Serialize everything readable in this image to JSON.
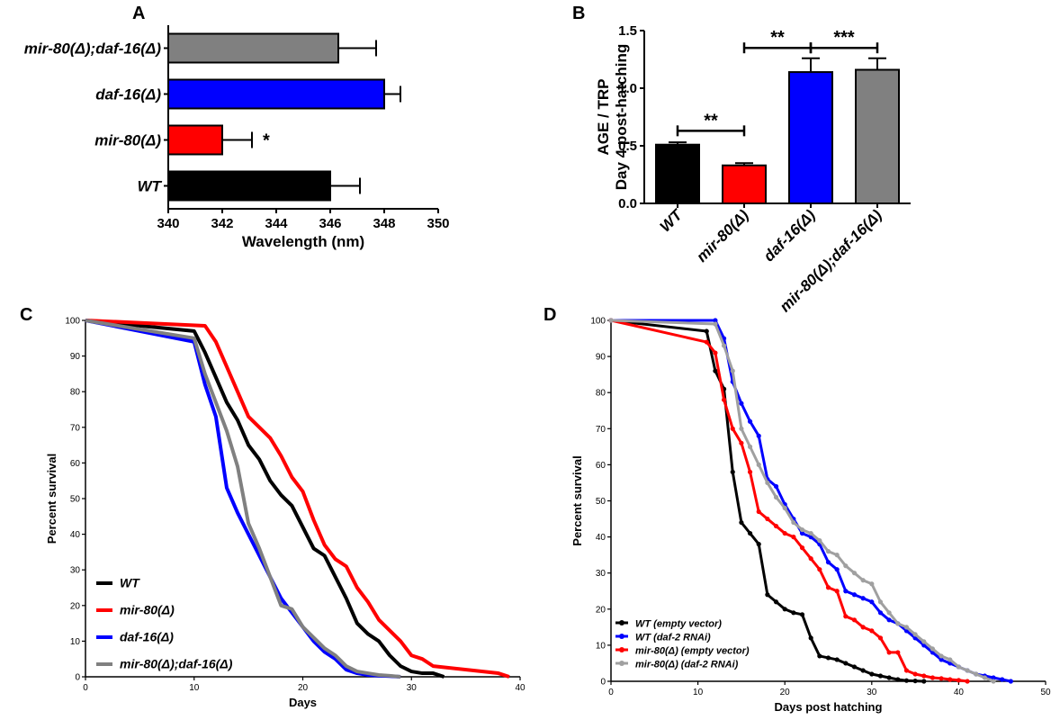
{
  "panels": {
    "a": {
      "letter": "A"
    },
    "b": {
      "letter": "B"
    },
    "c": {
      "letter": "C"
    },
    "d": {
      "letter": "D"
    }
  },
  "chart_data": [
    {
      "id": "A",
      "type": "bar",
      "orientation": "horizontal",
      "categories": [
        "mir-80(Δ);daf-16(Δ)",
        "daf-16(Δ)",
        "mir-80(Δ)",
        "WT"
      ],
      "values": [
        346.3,
        348.0,
        342.0,
        346.0
      ],
      "errors": [
        1.4,
        0.6,
        1.1,
        1.1
      ],
      "colors": [
        "#808080",
        "#0000ff",
        "#ff0000",
        "#000000"
      ],
      "significance": [
        "",
        "",
        "*",
        ""
      ],
      "xlabel": "Wavelength  (nm)",
      "xlim": [
        340,
        350
      ],
      "xticks": [
        "340",
        "342",
        "344",
        "346",
        "348",
        "350"
      ]
    },
    {
      "id": "B",
      "type": "bar",
      "categories": [
        "WT",
        "mir-80(Δ)",
        "daf-16(Δ)",
        "mir-80(Δ);daf-16(Δ)"
      ],
      "values": [
        0.51,
        0.33,
        1.14,
        1.16
      ],
      "errors": [
        0.02,
        0.02,
        0.12,
        0.1
      ],
      "colors": [
        "#000000",
        "#ff0000",
        "#0000ff",
        "#808080"
      ],
      "ylabel_line1": "AGE / TRP",
      "ylabel_line2": "Day 4 post-hatching",
      "ylim": [
        0,
        1.5
      ],
      "yticks": [
        "0.0",
        "0.5",
        "1.0",
        "1.5"
      ],
      "significance": [
        {
          "label": "**",
          "from": 0,
          "to": 1,
          "y": 0.63
        },
        {
          "label": "**",
          "from": 1,
          "to": 2,
          "y": 1.35
        },
        {
          "label": "***",
          "from": 2,
          "to": 3,
          "y": 1.35
        }
      ]
    },
    {
      "id": "C",
      "type": "line",
      "xlabel": "Days",
      "ylabel": "Percent survival",
      "xlim": [
        0,
        40
      ],
      "ylim": [
        0,
        100
      ],
      "xticks": [
        "0",
        "10",
        "20",
        "30",
        "40"
      ],
      "yticks": [
        "0",
        "10",
        "20",
        "30",
        "40",
        "50",
        "60",
        "70",
        "80",
        "90",
        "100"
      ],
      "legend_position": "bottom-left",
      "series": [
        {
          "name": "WT",
          "color": "#000000",
          "x": [
            0,
            10,
            11,
            12,
            13,
            14,
            15,
            16,
            17,
            18,
            19,
            20,
            21,
            22,
            23,
            24,
            25,
            26,
            27,
            28,
            29,
            30,
            31,
            32,
            33
          ],
          "y": [
            100,
            97,
            91,
            84,
            77,
            72,
            65,
            61,
            55,
            51,
            48,
            42,
            36,
            34,
            28,
            22,
            15,
            12,
            10,
            6,
            3,
            1.5,
            1,
            1,
            0
          ]
        },
        {
          "name": "mir-80(Δ)",
          "color": "#ff0000",
          "x": [
            0,
            11,
            12,
            13,
            14,
            15,
            16,
            17,
            18,
            19,
            20,
            21,
            22,
            23,
            24,
            25,
            26,
            27,
            28,
            29,
            30,
            31,
            32,
            38,
            39
          ],
          "y": [
            100,
            98.5,
            94,
            87,
            80,
            73,
            70,
            67,
            62,
            56,
            52,
            44,
            37,
            33,
            31,
            25,
            21,
            16,
            13,
            10,
            6,
            5,
            3,
            1,
            0
          ]
        },
        {
          "name": "daf-16(Δ)",
          "color": "#0000ff",
          "x": [
            0,
            10,
            11,
            12,
            13,
            14,
            15,
            16,
            17,
            18,
            19,
            20,
            21,
            22,
            23,
            24,
            25,
            26,
            27,
            28,
            29
          ],
          "y": [
            100,
            94,
            82,
            73,
            53,
            46,
            40,
            34,
            28,
            22,
            18,
            14,
            10,
            7,
            5,
            2,
            1,
            0.5,
            0.3,
            0.2,
            0
          ]
        },
        {
          "name": "mir-80(Δ);daf-16(Δ)",
          "color": "#808080",
          "x": [
            0,
            10,
            11,
            12,
            13,
            14,
            15,
            16,
            17,
            18,
            19,
            20,
            21,
            22,
            23,
            24,
            25,
            26,
            27,
            28,
            29
          ],
          "y": [
            100,
            95,
            85,
            77,
            69,
            59,
            43,
            36,
            28,
            20,
            19,
            14,
            11,
            8,
            6,
            3,
            1.5,
            1,
            0.5,
            0.3,
            0
          ]
        }
      ]
    },
    {
      "id": "D",
      "type": "line",
      "xlabel": "Days post hatching",
      "ylabel": "Percent survival",
      "xlim": [
        0,
        50
      ],
      "ylim": [
        0,
        100
      ],
      "xticks": [
        "0",
        "10",
        "20",
        "30",
        "40",
        "50"
      ],
      "yticks": [
        "0",
        "10",
        "20",
        "30",
        "40",
        "50",
        "60",
        "70",
        "80",
        "90",
        "100"
      ],
      "legend_position": "bottom-left",
      "series": [
        {
          "name": "WT (empty vector)",
          "color": "#000000",
          "x": [
            0,
            11,
            12,
            13,
            14,
            15,
            16,
            17,
            18,
            19,
            20,
            21,
            22,
            23,
            24,
            25,
            26,
            27,
            28,
            29,
            30,
            31,
            32,
            33,
            34,
            35,
            36
          ],
          "y": [
            100,
            97,
            86,
            81,
            58,
            44,
            41,
            38,
            24,
            22,
            20,
            19,
            18.5,
            12,
            7,
            6.5,
            6,
            5,
            4,
            3,
            2,
            1.5,
            1,
            0.5,
            0.2,
            0.1,
            0
          ]
        },
        {
          "name": "WT (daf-2 RNAi)",
          "color": "#0000ff",
          "x": [
            0,
            12,
            13,
            14,
            15,
            16,
            17,
            18,
            19,
            20,
            21,
            22,
            23,
            24,
            25,
            26,
            27,
            28,
            29,
            30,
            31,
            32,
            33,
            34,
            35,
            36,
            37,
            38,
            39,
            40,
            41,
            42,
            43,
            44,
            45,
            46
          ],
          "y": [
            100,
            100,
            95,
            83,
            77,
            72,
            68,
            56,
            54,
            49,
            45,
            41,
            40,
            38,
            33,
            31,
            25,
            24,
            23,
            22,
            19,
            17,
            16,
            14,
            12,
            10,
            8,
            6,
            5,
            4,
            3,
            2,
            1.5,
            1,
            0.5,
            0
          ]
        },
        {
          "name": "mir-80(Δ) (empty vector)",
          "color": "#ff0000",
          "x": [
            0,
            11,
            12,
            13,
            14,
            15,
            16,
            17,
            18,
            19,
            20,
            21,
            22,
            23,
            24,
            25,
            26,
            27,
            28,
            29,
            30,
            31,
            32,
            33,
            34,
            35,
            36,
            37,
            38,
            39,
            40,
            41
          ],
          "y": [
            100,
            94,
            91,
            78,
            70,
            66,
            58,
            47,
            45,
            43,
            41,
            40,
            37,
            34,
            31,
            26,
            25,
            18,
            17,
            15,
            14,
            12,
            8,
            8,
            3,
            2,
            1.5,
            1,
            0.8,
            0.5,
            0.3,
            0
          ]
        },
        {
          "name": "mir-80(Δ) (daf-2 RNAi)",
          "color": "#a0a0a0",
          "x": [
            0,
            12,
            13,
            14,
            15,
            16,
            17,
            18,
            19,
            20,
            21,
            22,
            23,
            24,
            25,
            26,
            27,
            28,
            29,
            30,
            31,
            32,
            33,
            34,
            35,
            36,
            37,
            38,
            39,
            40,
            41,
            42,
            43,
            44
          ],
          "y": [
            100,
            99,
            93,
            86,
            70,
            65,
            60,
            55,
            51,
            48,
            44,
            42,
            41,
            39,
            36,
            35,
            32,
            30,
            28,
            27,
            22,
            19,
            16,
            15,
            13,
            11,
            9,
            7,
            6,
            4,
            3,
            2,
            1,
            0
          ]
        }
      ]
    }
  ]
}
